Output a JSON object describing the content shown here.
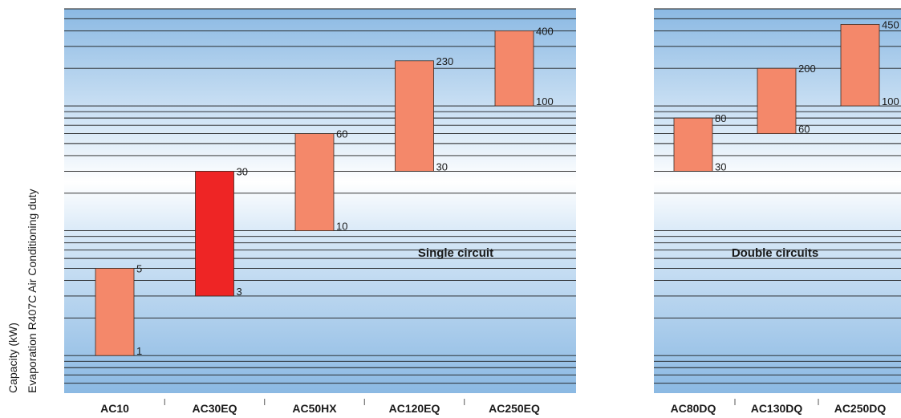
{
  "chart_data": {
    "type": "range-bar",
    "scale": "log",
    "ylim": [
      0.5,
      600
    ],
    "ylabel": [
      "Capacity (kW)",
      "Evaporation R407C Air Conditioning duty"
    ],
    "colors": {
      "bar": "#F4886A",
      "highlight": "#EE2525",
      "grid": "#1a1a1a",
      "band_light": "#ffffff",
      "band_dark": "#8BB9E3"
    },
    "panels": [
      {
        "label": "Single circuit",
        "categories": [
          "AC10",
          "AC30EQ",
          "AC50HX",
          "AC120EQ",
          "AC250EQ"
        ],
        "bars": [
          {
            "category": "AC10",
            "min": 1,
            "max": 5,
            "min_label": "1",
            "max_label": "5"
          },
          {
            "category": "AC30EQ",
            "min": 3,
            "max": 30,
            "min_label": "3",
            "max_label": "30",
            "highlight": true
          },
          {
            "category": "AC50HX",
            "min": 10,
            "max": 60,
            "min_label": "10",
            "max_label": "60"
          },
          {
            "category": "AC120EQ",
            "min": 30,
            "max": 230,
            "min_label": "30",
            "max_label": "230"
          },
          {
            "category": "AC250EQ",
            "min": 100,
            "max": 400,
            "min_label": "100",
            "max_label": "400"
          }
        ]
      },
      {
        "label": "Double circuits",
        "categories": [
          "AC80DQ",
          "AC130DQ",
          "AC250DQ"
        ],
        "bars": [
          {
            "category": "AC80DQ",
            "min": 30,
            "max": 80,
            "min_label": "30",
            "max_label": "80"
          },
          {
            "category": "AC130DQ",
            "min": 60,
            "max": 200,
            "min_label": "60",
            "max_label": "200"
          },
          {
            "category": "AC250DQ",
            "min": 100,
            "max": 450,
            "min_label": "100",
            "max_label": "450"
          }
        ]
      }
    ]
  }
}
